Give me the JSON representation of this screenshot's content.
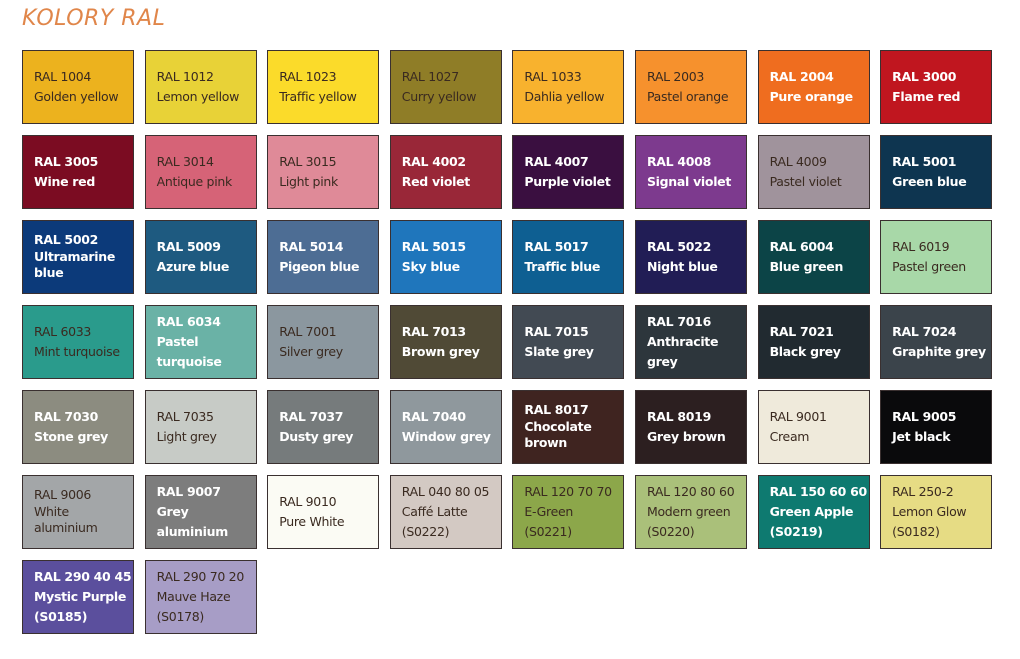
{
  "title": "KOLORY RAL",
  "swatches": [
    {
      "code": "RAL 1004",
      "name": "Golden yellow",
      "color": "#ecb21e",
      "text": "dark"
    },
    {
      "code": "RAL 1012",
      "name": "Lemon yellow",
      "color": "#e8d237",
      "text": "dark"
    },
    {
      "code": "RAL 1023",
      "name": "Traffic yellow",
      "color": "#fbdb2a",
      "text": "dark"
    },
    {
      "code": "RAL 1027",
      "name": "Curry yellow",
      "color": "#8f7d27",
      "text": "dark"
    },
    {
      "code": "RAL 1033",
      "name": "Dahlia yellow",
      "color": "#f8b22e",
      "text": "dark"
    },
    {
      "code": "RAL 2003",
      "name": "Pastel orange",
      "color": "#f6912d",
      "text": "dark"
    },
    {
      "code": "RAL 2004",
      "name": "Pure orange",
      "color": "#ef6d1f",
      "text": "light"
    },
    {
      "code": "RAL 3000",
      "name": "Flame red",
      "color": "#c0161f",
      "text": "light"
    },
    {
      "code": "RAL 3005",
      "name": "Wine red",
      "color": "#7b0c22",
      "text": "light"
    },
    {
      "code": "RAL 3014",
      "name": "Antique pink",
      "color": "#d66377",
      "text": "dark"
    },
    {
      "code": "RAL 3015",
      "name": "Light pink",
      "color": "#df8a98",
      "text": "dark"
    },
    {
      "code": "RAL 4002",
      "name": "Red violet",
      "color": "#992738",
      "text": "light"
    },
    {
      "code": "RAL 4007",
      "name": "Purple violet",
      "color": "#3a0f40",
      "text": "light"
    },
    {
      "code": "RAL 4008",
      "name": "Signal violet",
      "color": "#7d3a8e",
      "text": "light"
    },
    {
      "code": "RAL 4009",
      "name": "Pastel violet",
      "color": "#a0939c",
      "text": "dark"
    },
    {
      "code": "RAL 5001",
      "name": "Green blue",
      "color": "#0e3550",
      "text": "light"
    },
    {
      "code": "RAL 5002",
      "name": "Ultramarine blue",
      "color": "#0c3a7a",
      "text": "light"
    },
    {
      "code": "RAL 5009",
      "name": "Azure blue",
      "color": "#1e5a80",
      "text": "light"
    },
    {
      "code": "RAL 5014",
      "name": "Pigeon blue",
      "color": "#4d6d94",
      "text": "light"
    },
    {
      "code": "RAL 5015",
      "name": "Sky blue",
      "color": "#1f76bc",
      "text": "light"
    },
    {
      "code": "RAL 5017",
      "name": "Traffic blue",
      "color": "#0e5f92",
      "text": "light"
    },
    {
      "code": "RAL 5022",
      "name": "Night blue",
      "color": "#211d55",
      "text": "light"
    },
    {
      "code": "RAL 6004",
      "name": "Blue green",
      "color": "#0c4447",
      "text": "light"
    },
    {
      "code": "RAL 6019",
      "name": "Pastel green",
      "color": "#a8d8a8",
      "text": "dark"
    },
    {
      "code": "RAL 6033",
      "name": "Mint turquoise",
      "color": "#2a9b8c",
      "text": "dark"
    },
    {
      "code": "RAL 6034",
      "name": "Pastel turquoise",
      "color": "#6ab2a6",
      "text": "light"
    },
    {
      "code": "RAL 7001",
      "name": "Silver grey",
      "color": "#8b979f",
      "text": "dark"
    },
    {
      "code": "RAL 7013",
      "name": "Brown grey",
      "color": "#504a36",
      "text": "light"
    },
    {
      "code": "RAL 7015",
      "name": "Slate grey",
      "color": "#424a53",
      "text": "light"
    },
    {
      "code": "RAL 7016",
      "name": "Anthracite grey",
      "color": "#2d363c",
      "text": "light"
    },
    {
      "code": "RAL 7021",
      "name": "Black grey",
      "color": "#212a30",
      "text": "light"
    },
    {
      "code": "RAL 7024",
      "name": "Graphite grey",
      "color": "#3b444b",
      "text": "light"
    },
    {
      "code": "RAL 7030",
      "name": "Stone grey",
      "color": "#8c8c80",
      "text": "light"
    },
    {
      "code": "RAL 7035",
      "name": "Light grey",
      "color": "#c7cbc6",
      "text": "dark"
    },
    {
      "code": "RAL 7037",
      "name": "Dusty grey",
      "color": "#767b7c",
      "text": "light"
    },
    {
      "code": "RAL 7040",
      "name": "Window grey",
      "color": "#8f989d",
      "text": "light"
    },
    {
      "code": "RAL 8017",
      "name": "Chocolate brown",
      "color": "#3f2420",
      "text": "light"
    },
    {
      "code": "RAL 8019",
      "name": "Grey brown",
      "color": "#2c1f20",
      "text": "light"
    },
    {
      "code": "RAL 9001",
      "name": "Cream",
      "color": "#efeadb",
      "text": "dark"
    },
    {
      "code": "RAL 9005",
      "name": "Jet black",
      "color": "#0a0a0c",
      "text": "light"
    },
    {
      "code": "RAL 9006",
      "name": "White aluminium",
      "color": "#a3a6a8",
      "text": "dark"
    },
    {
      "code": "RAL 9007",
      "name": "Grey aluminium",
      "color": "#7d7d7d",
      "text": "light"
    },
    {
      "code": "RAL 9010",
      "name": "Pure White",
      "color": "#fbfbf4",
      "text": "dark"
    },
    {
      "code": "RAL 040 80 05",
      "name": "Caffé Latte",
      "ref": "(S0222)",
      "color": "#d3c9c3",
      "text": "dark"
    },
    {
      "code": "RAL 120 70 70",
      "name": "E-Green",
      "ref": "(S0221)",
      "color": "#8ca74a",
      "text": "dark"
    },
    {
      "code": "RAL 120 80 60",
      "name": "Modern green",
      "ref": "(S0220)",
      "color": "#aac07a",
      "text": "dark"
    },
    {
      "code": "RAL 150 60 60",
      "name": "Green Apple",
      "ref": "(S0219)",
      "color": "#0e7a70",
      "text": "light"
    },
    {
      "code": "RAL 250-2",
      "name": "Lemon Glow",
      "ref": "(S0182)",
      "color": "#e6dc84",
      "text": "dark"
    },
    {
      "code": "RAL 290 40 45",
      "name": "Mystic Purple",
      "ref": "(S0185)",
      "color": "#5b4f9d",
      "text": "light"
    },
    {
      "code": "RAL 290 70 20",
      "name": "Mauve Haze",
      "ref": "(S0178)",
      "color": "#a79dc6",
      "text": "dark"
    }
  ]
}
